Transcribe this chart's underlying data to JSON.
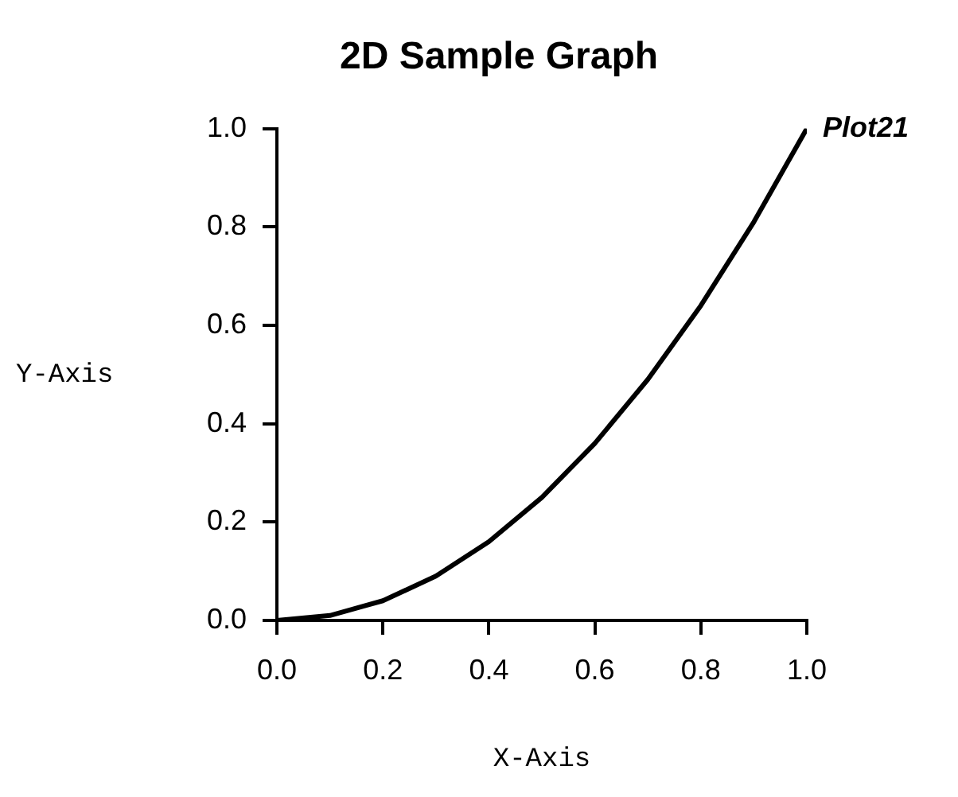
{
  "chart_data": {
    "type": "line",
    "title": "2D Sample Graph",
    "xlabel": "X-Axis",
    "ylabel": "Y-Axis",
    "x": [
      0,
      0.1,
      0.2,
      0.3,
      0.4,
      0.5,
      0.6,
      0.7,
      0.8,
      0.9,
      1.0
    ],
    "series": [
      {
        "name": "Plot21",
        "color": "#000000",
        "values": [
          0,
          0.01,
          0.04,
          0.09,
          0.16,
          0.25,
          0.36,
          0.49,
          0.64,
          0.81,
          1.0
        ]
      }
    ],
    "xlim": [
      0,
      1
    ],
    "ylim": [
      0,
      1
    ],
    "xticks": [
      {
        "value": 0,
        "label": "0.0"
      },
      {
        "value": 0.2,
        "label": "0.2"
      },
      {
        "value": 0.4,
        "label": "0.4"
      },
      {
        "value": 0.6,
        "label": "0.6"
      },
      {
        "value": 0.8,
        "label": "0.8"
      },
      {
        "value": 1,
        "label": "1.0"
      }
    ],
    "yticks": [
      {
        "value": 0,
        "label": "0.0"
      },
      {
        "value": 0.2,
        "label": "0.2"
      },
      {
        "value": 0.4,
        "label": "0.4"
      },
      {
        "value": 0.6,
        "label": "0.6"
      },
      {
        "value": 0.8,
        "label": "0.8"
      },
      {
        "value": 1,
        "label": "1.0"
      }
    ],
    "grid": false,
    "legend": false,
    "marker": "none",
    "line_style": "solid"
  }
}
